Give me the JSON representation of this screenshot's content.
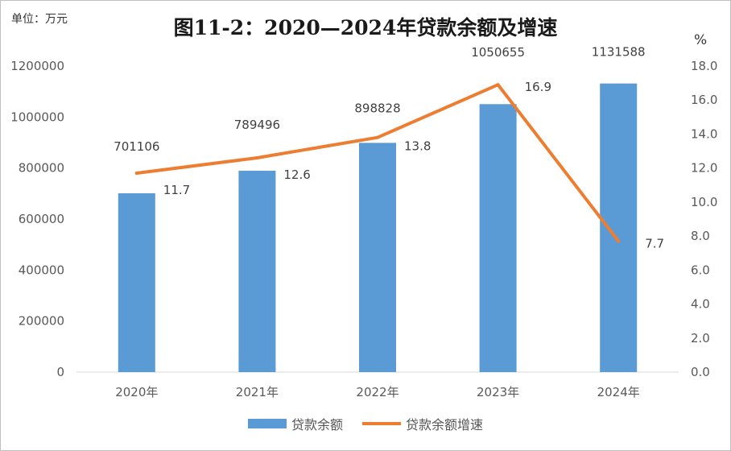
{
  "unit_label": "单位：万元",
  "title": "图11-2：2020—2024年贷款余额及增速",
  "right_axis_unit": "%",
  "colors": {
    "bar": "#5b9bd5",
    "line": "#ed7d31",
    "axis": "#d9d9d9",
    "text": "#595959"
  },
  "chart_data": {
    "type": "bar",
    "categories": [
      "2020年",
      "2021年",
      "2022年",
      "2023年",
      "2024年"
    ],
    "series": [
      {
        "name": "贷款余额",
        "type": "bar",
        "axis": "left",
        "values": [
          701106,
          789496,
          898828,
          1050655,
          1131588
        ]
      },
      {
        "name": "贷款余额增速",
        "type": "line",
        "axis": "right",
        "values": [
          11.7,
          12.6,
          13.8,
          16.9,
          7.7
        ]
      }
    ],
    "left_axis": {
      "ylim": [
        0,
        1200000
      ],
      "ticks": [
        "0",
        "200000",
        "400000",
        "600000",
        "800000",
        "1000000",
        "1200000"
      ]
    },
    "right_axis": {
      "ylim": [
        0,
        18
      ],
      "ticks": [
        "0.0",
        "2.0",
        "4.0",
        "6.0",
        "8.0",
        "10.0",
        "12.0",
        "14.0",
        "16.0",
        "18.0"
      ]
    },
    "bar_labels": [
      "701106",
      "789496",
      "898828",
      "1050655",
      "1131588"
    ],
    "line_labels": [
      "11.7",
      "12.6",
      "13.8",
      "16.9",
      "7.7"
    ],
    "legend_position": "bottom",
    "grid": false
  }
}
